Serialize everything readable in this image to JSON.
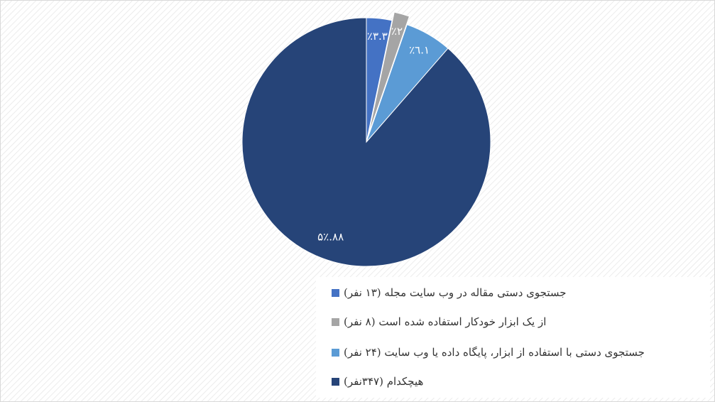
{
  "chart_data": {
    "type": "pie",
    "categories": [
      "جستجوی دستی مقاله در وب سایت مجله (۱۳ نفر)",
      "از یک ابزار خودکار استفاده شده است (۸ نفر)",
      "جستجوی دستی با استفاده از ابزار، پایگاه داده یا وب سایت (۲۴ نفر)",
      "هیچکدام (۳۴۷نفر)"
    ],
    "values": [
      3.3,
      2,
      6.1,
      88.5
    ],
    "value_labels": [
      "٣.٣٪",
      "٢٪",
      "٦.١٪",
      "٨٨.۵٪"
    ],
    "colors": [
      "#4472c4",
      "#a5a5a5",
      "#5b9bd5",
      "#264478"
    ],
    "exploded": [
      false,
      true,
      false,
      false
    ],
    "legend": "bottom-right"
  }
}
